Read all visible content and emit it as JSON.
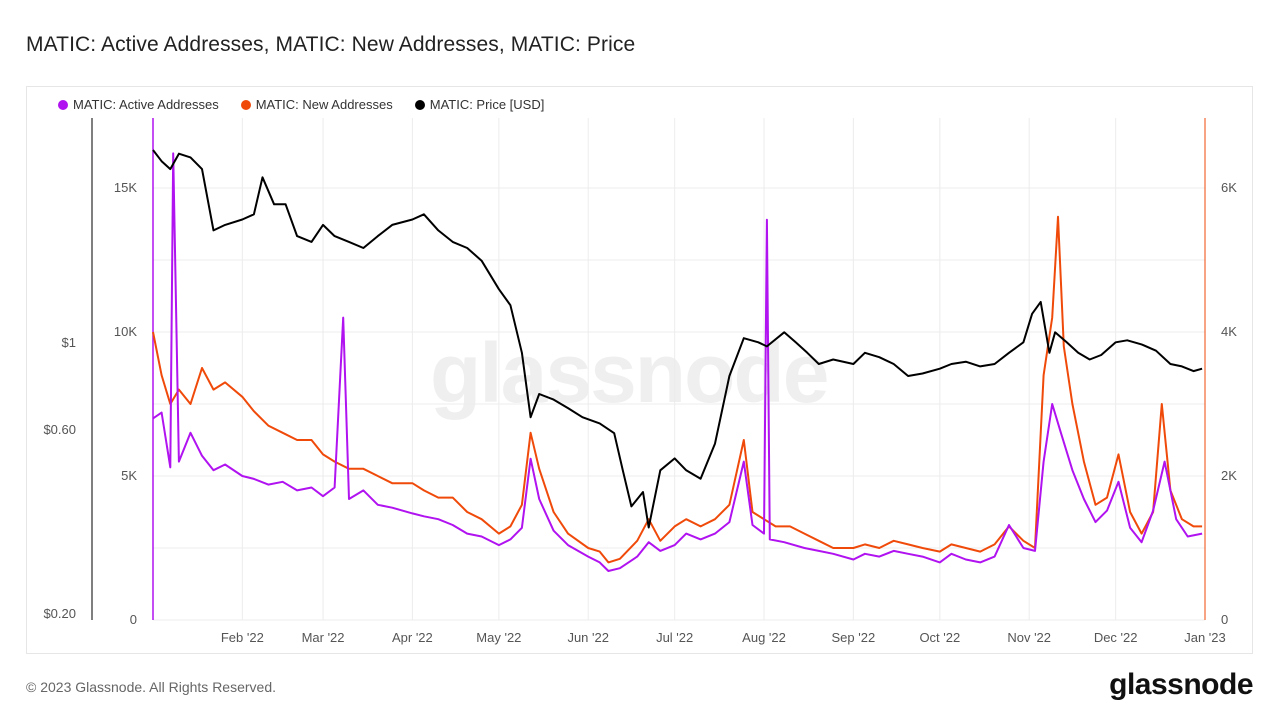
{
  "title": "MATIC: Active Addresses, MATIC: New Addresses, MATIC: Price",
  "footer": "© 2023 Glassnode. All Rights Reserved.",
  "brand": "glassnode",
  "watermark": "glassnode",
  "colors": {
    "active": "#b012f0",
    "new": "#f04a0a",
    "price": "#000000",
    "grid": "#ececec",
    "axis_text": "#555555"
  },
  "legend": [
    {
      "label": "MATIC: Active Addresses",
      "color": "#b012f0"
    },
    {
      "label": "MATIC: New Addresses",
      "color": "#f04a0a"
    },
    {
      "label": "MATIC: Price [USD]",
      "color": "#000000"
    }
  ],
  "chart_data": {
    "type": "line",
    "x_ticks": [
      "Feb '22",
      "Mar '22",
      "Apr '22",
      "May '22",
      "Jun '22",
      "Jul '22",
      "Aug '22",
      "Sep '22",
      "Oct '22",
      "Nov '22",
      "Dec '22",
      "Jan '23"
    ],
    "y_left_ticks": [
      "0",
      "5K",
      "10K",
      "15K"
    ],
    "y_left_ticks_values": [
      0,
      5000,
      10000,
      15000
    ],
    "y_right_ticks": [
      "0",
      "2K",
      "4K",
      "6K"
    ],
    "y_right_ticks_values": [
      0,
      2000,
      4000,
      6000
    ],
    "y_price_ticks": [
      "$0.20",
      "$0.60",
      "$1"
    ],
    "y_price_ticks_values": [
      0.2,
      0.6,
      1
    ],
    "left_range": [
      0,
      15000
    ],
    "right_range": [
      0,
      6000
    ],
    "price_scale": "log",
    "price_range": [
      0.2,
      3.0
    ],
    "x_range": [
      "2022-01-01",
      "2023-01-01"
    ],
    "grid": true,
    "legend_position": "top-left",
    "series": [
      {
        "name": "MATIC: Active Addresses",
        "axis": "left",
        "points": [
          [
            "2022-01-01",
            7000
          ],
          [
            "2022-01-04",
            7200
          ],
          [
            "2022-01-07",
            5300
          ],
          [
            "2022-01-08",
            16200
          ],
          [
            "2022-01-10",
            5500
          ],
          [
            "2022-01-14",
            6500
          ],
          [
            "2022-01-18",
            5700
          ],
          [
            "2022-01-22",
            5200
          ],
          [
            "2022-01-26",
            5400
          ],
          [
            "2022-02-01",
            5000
          ],
          [
            "2022-02-05",
            4900
          ],
          [
            "2022-02-10",
            4700
          ],
          [
            "2022-02-15",
            4800
          ],
          [
            "2022-02-20",
            4500
          ],
          [
            "2022-02-25",
            4600
          ],
          [
            "2022-03-01",
            4300
          ],
          [
            "2022-03-05",
            4600
          ],
          [
            "2022-03-08",
            10500
          ],
          [
            "2022-03-10",
            4200
          ],
          [
            "2022-03-15",
            4500
          ],
          [
            "2022-03-20",
            4000
          ],
          [
            "2022-03-25",
            3900
          ],
          [
            "2022-04-01",
            3700
          ],
          [
            "2022-04-05",
            3600
          ],
          [
            "2022-04-10",
            3500
          ],
          [
            "2022-04-15",
            3300
          ],
          [
            "2022-04-20",
            3000
          ],
          [
            "2022-04-25",
            2900
          ],
          [
            "2022-05-01",
            2600
          ],
          [
            "2022-05-05",
            2800
          ],
          [
            "2022-05-09",
            3200
          ],
          [
            "2022-05-12",
            5600
          ],
          [
            "2022-05-15",
            4200
          ],
          [
            "2022-05-20",
            3100
          ],
          [
            "2022-05-25",
            2600
          ],
          [
            "2022-06-01",
            2200
          ],
          [
            "2022-06-05",
            2000
          ],
          [
            "2022-06-08",
            1700
          ],
          [
            "2022-06-12",
            1800
          ],
          [
            "2022-06-18",
            2200
          ],
          [
            "2022-06-22",
            2700
          ],
          [
            "2022-06-26",
            2400
          ],
          [
            "2022-07-01",
            2600
          ],
          [
            "2022-07-05",
            3000
          ],
          [
            "2022-07-10",
            2800
          ],
          [
            "2022-07-15",
            3000
          ],
          [
            "2022-07-20",
            3400
          ],
          [
            "2022-07-25",
            5500
          ],
          [
            "2022-07-28",
            3300
          ],
          [
            "2022-08-01",
            3000
          ],
          [
            "2022-08-02",
            13900
          ],
          [
            "2022-08-03",
            2800
          ],
          [
            "2022-08-08",
            2700
          ],
          [
            "2022-08-15",
            2500
          ],
          [
            "2022-08-20",
            2400
          ],
          [
            "2022-08-25",
            2300
          ],
          [
            "2022-09-01",
            2100
          ],
          [
            "2022-09-05",
            2300
          ],
          [
            "2022-09-10",
            2200
          ],
          [
            "2022-09-15",
            2400
          ],
          [
            "2022-09-20",
            2300
          ],
          [
            "2022-09-25",
            2200
          ],
          [
            "2022-10-01",
            2000
          ],
          [
            "2022-10-05",
            2300
          ],
          [
            "2022-10-10",
            2100
          ],
          [
            "2022-10-15",
            2000
          ],
          [
            "2022-10-20",
            2200
          ],
          [
            "2022-10-25",
            3300
          ],
          [
            "2022-10-30",
            2500
          ],
          [
            "2022-11-03",
            2400
          ],
          [
            "2022-11-06",
            5500
          ],
          [
            "2022-11-09",
            7500
          ],
          [
            "2022-11-12",
            6500
          ],
          [
            "2022-11-16",
            5200
          ],
          [
            "2022-11-20",
            4200
          ],
          [
            "2022-11-24",
            3400
          ],
          [
            "2022-11-28",
            3800
          ],
          [
            "2022-12-02",
            4800
          ],
          [
            "2022-12-06",
            3200
          ],
          [
            "2022-12-10",
            2700
          ],
          [
            "2022-12-14",
            3800
          ],
          [
            "2022-12-18",
            5500
          ],
          [
            "2022-12-22",
            3500
          ],
          [
            "2022-12-26",
            2900
          ],
          [
            "2022-12-31",
            3000
          ]
        ]
      },
      {
        "name": "MATIC: New Addresses",
        "axis": "right",
        "points": [
          [
            "2022-01-01",
            4000
          ],
          [
            "2022-01-04",
            3400
          ],
          [
            "2022-01-07",
            3000
          ],
          [
            "2022-01-10",
            3200
          ],
          [
            "2022-01-14",
            3000
          ],
          [
            "2022-01-18",
            3500
          ],
          [
            "2022-01-22",
            3200
          ],
          [
            "2022-01-26",
            3300
          ],
          [
            "2022-02-01",
            3100
          ],
          [
            "2022-02-05",
            2900
          ],
          [
            "2022-02-10",
            2700
          ],
          [
            "2022-02-15",
            2600
          ],
          [
            "2022-02-20",
            2500
          ],
          [
            "2022-02-25",
            2500
          ],
          [
            "2022-03-01",
            2300
          ],
          [
            "2022-03-05",
            2200
          ],
          [
            "2022-03-10",
            2100
          ],
          [
            "2022-03-15",
            2100
          ],
          [
            "2022-03-20",
            2000
          ],
          [
            "2022-03-25",
            1900
          ],
          [
            "2022-04-01",
            1900
          ],
          [
            "2022-04-05",
            1800
          ],
          [
            "2022-04-10",
            1700
          ],
          [
            "2022-04-15",
            1700
          ],
          [
            "2022-04-20",
            1500
          ],
          [
            "2022-04-25",
            1400
          ],
          [
            "2022-05-01",
            1200
          ],
          [
            "2022-05-05",
            1300
          ],
          [
            "2022-05-09",
            1600
          ],
          [
            "2022-05-12",
            2600
          ],
          [
            "2022-05-15",
            2100
          ],
          [
            "2022-05-20",
            1500
          ],
          [
            "2022-05-25",
            1200
          ],
          [
            "2022-06-01",
            1000
          ],
          [
            "2022-06-05",
            950
          ],
          [
            "2022-06-08",
            800
          ],
          [
            "2022-06-12",
            850
          ],
          [
            "2022-06-18",
            1100
          ],
          [
            "2022-06-22",
            1400
          ],
          [
            "2022-06-26",
            1100
          ],
          [
            "2022-07-01",
            1300
          ],
          [
            "2022-07-05",
            1400
          ],
          [
            "2022-07-10",
            1300
          ],
          [
            "2022-07-15",
            1400
          ],
          [
            "2022-07-20",
            1600
          ],
          [
            "2022-07-25",
            2500
          ],
          [
            "2022-07-28",
            1500
          ],
          [
            "2022-08-01",
            1400
          ],
          [
            "2022-08-05",
            1300
          ],
          [
            "2022-08-10",
            1300
          ],
          [
            "2022-08-15",
            1200
          ],
          [
            "2022-08-20",
            1100
          ],
          [
            "2022-08-25",
            1000
          ],
          [
            "2022-09-01",
            1000
          ],
          [
            "2022-09-05",
            1050
          ],
          [
            "2022-09-10",
            1000
          ],
          [
            "2022-09-15",
            1100
          ],
          [
            "2022-09-20",
            1050
          ],
          [
            "2022-09-25",
            1000
          ],
          [
            "2022-10-01",
            950
          ],
          [
            "2022-10-05",
            1050
          ],
          [
            "2022-10-10",
            1000
          ],
          [
            "2022-10-15",
            950
          ],
          [
            "2022-10-20",
            1050
          ],
          [
            "2022-10-25",
            1300
          ],
          [
            "2022-10-30",
            1100
          ],
          [
            "2022-11-03",
            1000
          ],
          [
            "2022-11-06",
            3400
          ],
          [
            "2022-11-09",
            4200
          ],
          [
            "2022-11-11",
            5600
          ],
          [
            "2022-11-13",
            3800
          ],
          [
            "2022-11-16",
            3000
          ],
          [
            "2022-11-20",
            2200
          ],
          [
            "2022-11-24",
            1600
          ],
          [
            "2022-11-28",
            1700
          ],
          [
            "2022-12-02",
            2300
          ],
          [
            "2022-12-06",
            1500
          ],
          [
            "2022-12-10",
            1200
          ],
          [
            "2022-12-14",
            1500
          ],
          [
            "2022-12-17",
            3000
          ],
          [
            "2022-12-20",
            1800
          ],
          [
            "2022-12-24",
            1400
          ],
          [
            "2022-12-28",
            1300
          ],
          [
            "2022-12-31",
            1300
          ]
        ]
      },
      {
        "name": "MATIC: Price [USD]",
        "axis": "price",
        "points": [
          [
            "2022-01-01",
            2.55
          ],
          [
            "2022-01-04",
            2.4
          ],
          [
            "2022-01-07",
            2.3
          ],
          [
            "2022-01-10",
            2.5
          ],
          [
            "2022-01-14",
            2.45
          ],
          [
            "2022-01-18",
            2.3
          ],
          [
            "2022-01-22",
            1.65
          ],
          [
            "2022-01-26",
            1.7
          ],
          [
            "2022-02-01",
            1.75
          ],
          [
            "2022-02-05",
            1.8
          ],
          [
            "2022-02-08",
            2.2
          ],
          [
            "2022-02-12",
            1.9
          ],
          [
            "2022-02-16",
            1.9
          ],
          [
            "2022-02-20",
            1.6
          ],
          [
            "2022-02-25",
            1.55
          ],
          [
            "2022-03-01",
            1.7
          ],
          [
            "2022-03-05",
            1.6
          ],
          [
            "2022-03-10",
            1.55
          ],
          [
            "2022-03-15",
            1.5
          ],
          [
            "2022-03-20",
            1.6
          ],
          [
            "2022-03-25",
            1.7
          ],
          [
            "2022-04-01",
            1.75
          ],
          [
            "2022-04-05",
            1.8
          ],
          [
            "2022-04-10",
            1.65
          ],
          [
            "2022-04-15",
            1.55
          ],
          [
            "2022-04-20",
            1.5
          ],
          [
            "2022-04-25",
            1.4
          ],
          [
            "2022-05-01",
            1.2
          ],
          [
            "2022-05-05",
            1.1
          ],
          [
            "2022-05-09",
            0.85
          ],
          [
            "2022-05-12",
            0.6
          ],
          [
            "2022-05-15",
            0.68
          ],
          [
            "2022-05-20",
            0.66
          ],
          [
            "2022-05-25",
            0.63
          ],
          [
            "2022-05-30",
            0.6
          ],
          [
            "2022-06-05",
            0.58
          ],
          [
            "2022-06-10",
            0.55
          ],
          [
            "2022-06-13",
            0.45
          ],
          [
            "2022-06-16",
            0.37
          ],
          [
            "2022-06-20",
            0.4
          ],
          [
            "2022-06-22",
            0.33
          ],
          [
            "2022-06-26",
            0.45
          ],
          [
            "2022-07-01",
            0.48
          ],
          [
            "2022-07-05",
            0.45
          ],
          [
            "2022-07-10",
            0.43
          ],
          [
            "2022-07-15",
            0.52
          ],
          [
            "2022-07-20",
            0.75
          ],
          [
            "2022-07-25",
            0.92
          ],
          [
            "2022-07-30",
            0.9
          ],
          [
            "2022-08-02",
            0.88
          ],
          [
            "2022-08-08",
            0.95
          ],
          [
            "2022-08-12",
            0.9
          ],
          [
            "2022-08-16",
            0.85
          ],
          [
            "2022-08-20",
            0.8
          ],
          [
            "2022-08-25",
            0.82
          ],
          [
            "2022-09-01",
            0.8
          ],
          [
            "2022-09-05",
            0.85
          ],
          [
            "2022-09-10",
            0.83
          ],
          [
            "2022-09-15",
            0.8
          ],
          [
            "2022-09-20",
            0.75
          ],
          [
            "2022-09-25",
            0.76
          ],
          [
            "2022-10-01",
            0.78
          ],
          [
            "2022-10-05",
            0.8
          ],
          [
            "2022-10-10",
            0.81
          ],
          [
            "2022-10-15",
            0.79
          ],
          [
            "2022-10-20",
            0.8
          ],
          [
            "2022-10-25",
            0.85
          ],
          [
            "2022-10-30",
            0.9
          ],
          [
            "2022-11-02",
            1.05
          ],
          [
            "2022-11-05",
            1.12
          ],
          [
            "2022-11-08",
            0.85
          ],
          [
            "2022-11-10",
            0.95
          ],
          [
            "2022-11-14",
            0.9
          ],
          [
            "2022-11-18",
            0.85
          ],
          [
            "2022-11-22",
            0.82
          ],
          [
            "2022-11-26",
            0.84
          ],
          [
            "2022-12-01",
            0.9
          ],
          [
            "2022-12-05",
            0.91
          ],
          [
            "2022-12-10",
            0.89
          ],
          [
            "2022-12-15",
            0.86
          ],
          [
            "2022-12-20",
            0.8
          ],
          [
            "2022-12-24",
            0.79
          ],
          [
            "2022-12-28",
            0.77
          ],
          [
            "2022-12-31",
            0.78
          ]
        ]
      }
    ]
  }
}
